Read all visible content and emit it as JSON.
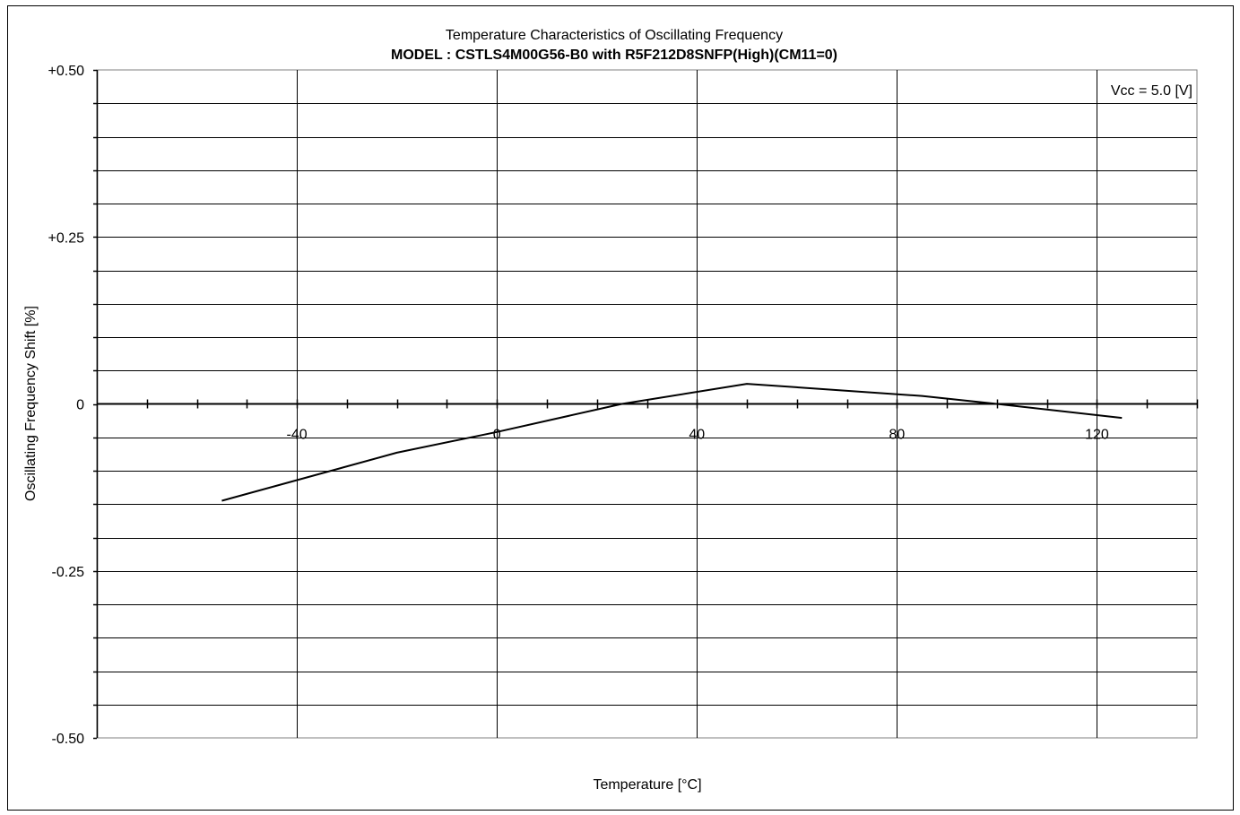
{
  "chart_data": {
    "type": "line",
    "title": "Temperature Characteristics of Oscillating Frequency",
    "subtitle": "MODEL : CSTLS4M00G56-B0 with R5F212D8SNFP(High)(CM11=0)",
    "xlabel": "Temperature [°C]",
    "ylabel": "Oscillating Frequency Shift [%]",
    "annotation": "Vcc = 5.0 [V]",
    "xlim": [
      -80,
      140
    ],
    "ylim": [
      -0.5,
      0.5
    ],
    "x_ticks": [
      {
        "value": -40,
        "label": "-40"
      },
      {
        "value": 0,
        "label": "0"
      },
      {
        "value": 40,
        "label": "40"
      },
      {
        "value": 80,
        "label": "80"
      },
      {
        "value": 120,
        "label": "120"
      }
    ],
    "y_ticks": [
      {
        "value": 0.5,
        "label": "+0.50"
      },
      {
        "value": 0.25,
        "label": "+0.25"
      },
      {
        "value": 0,
        "label": "0"
      },
      {
        "value": -0.25,
        "label": "-0.25"
      },
      {
        "value": -0.5,
        "label": "-0.50"
      }
    ],
    "grid": true,
    "series": [
      {
        "x": [
          -55,
          -20,
          0,
          25,
          50,
          85,
          100,
          125
        ],
        "y": [
          -0.145,
          -0.073,
          -0.042,
          0.0,
          0.03,
          0.012,
          0.0,
          -0.021
        ]
      }
    ]
  }
}
